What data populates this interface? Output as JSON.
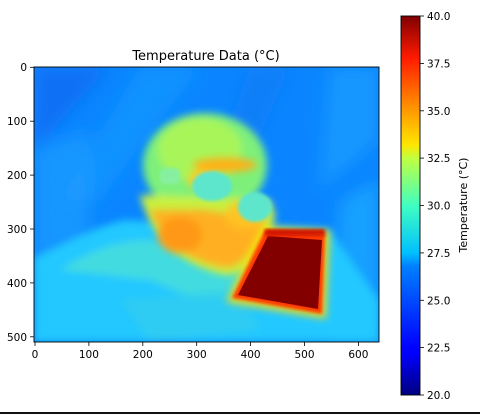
{
  "chart_data": {
    "type": "heatmap",
    "title": "Temperature Data (°C)",
    "xlim": [
      0,
      640
    ],
    "ylim": [
      512,
      0
    ],
    "x_ticks": [
      "0",
      "100",
      "200",
      "300",
      "400",
      "500",
      "600"
    ],
    "y_ticks": [
      "0",
      "100",
      "200",
      "300",
      "400",
      "500"
    ],
    "colormap": "jet",
    "colorbar": {
      "label": "Temperature (°C)",
      "range": [
        20.0,
        40.0
      ],
      "ticks": [
        "20.0",
        "22.5",
        "25.0",
        "27.5",
        "30.0",
        "32.5",
        "35.0",
        "37.5",
        "40.0"
      ]
    },
    "regions": [
      {
        "name": "background",
        "temperature": 25.5
      },
      {
        "name": "body",
        "temperature": 28.0
      },
      {
        "name": "head",
        "temperature": 31.5
      },
      {
        "name": "face",
        "temperature": 33.5
      },
      {
        "name": "eyeglasses",
        "temperature": 28.5
      },
      {
        "name": "hot-plate",
        "temperature": 40.0
      }
    ],
    "grid": false
  }
}
